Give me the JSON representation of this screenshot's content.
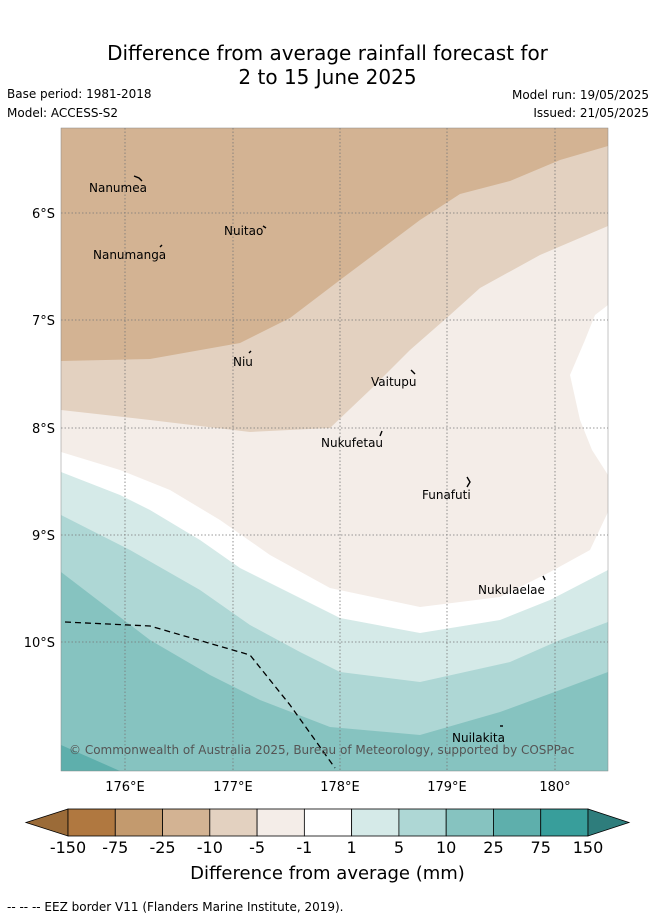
{
  "header": {
    "title_line1": "Difference from average rainfall forecast for",
    "title_line2": "2 to 15 June 2025",
    "base_period": "Base period: 1981-2018",
    "model": "Model: ACCESS-S2",
    "model_run": "Model run: 19/05/2025",
    "issued": "Issued: 21/05/2025"
  },
  "map": {
    "lat_labels": [
      "6°S",
      "7°S",
      "8°S",
      "9°S",
      "10°S"
    ],
    "lon_labels": [
      "176°E",
      "177°E",
      "178°E",
      "179°E",
      "180°"
    ],
    "places": [
      {
        "name": "Nanumea"
      },
      {
        "name": "Nuitao"
      },
      {
        "name": "Nanumanga"
      },
      {
        "name": "Niu"
      },
      {
        "name": "Vaitupu"
      },
      {
        "name": "Nukufetau"
      },
      {
        "name": "Funafuti"
      },
      {
        "name": "Nukulaelae"
      },
      {
        "name": "Nuilakita"
      }
    ],
    "copyright": "© Commonwealth of Australia 2025, Bureau of Meteorology, supported by COSPPac"
  },
  "colorbar": {
    "ticks": [
      "-150",
      "-75",
      "-25",
      "-10",
      "-5",
      "-1",
      "1",
      "5",
      "10",
      "25",
      "75",
      "150"
    ],
    "colors": [
      "#b07840",
      "#c39a6e",
      "#d3b393",
      "#e3d1c0",
      "#f4ede8",
      "#ffffff",
      "#d5eae8",
      "#aed7d5",
      "#86c3c0",
      "#5eafac",
      "#389e9b"
    ],
    "under_color": "#9b6b38",
    "over_color": "#2e7d7c",
    "title": "Difference from average (mm)"
  },
  "footer": {
    "eez_text": "-- -- -- EEZ border V11 (Flanders Marine Institute, 2019)."
  }
}
